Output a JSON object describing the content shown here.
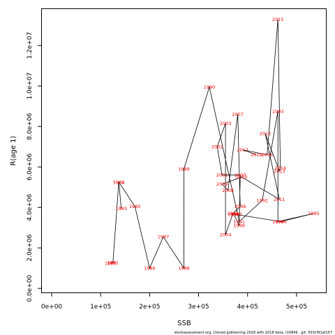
{
  "chart_data": {
    "type": "line",
    "xlabel": "SSB",
    "ylabel": "R(age 1)",
    "footer": "stockassessment.org, Cloned gobherring 2018 with 2018 data, r10846 , git: 503cf91af157",
    "xlim": [
      -20000,
      560000
    ],
    "ylim": [
      -200000,
      13800000
    ],
    "x_ticks": [
      {
        "value": 0,
        "label": "0e+00"
      },
      {
        "value": 100000,
        "label": "1e+05"
      },
      {
        "value": 200000,
        "label": "2e+05"
      },
      {
        "value": 300000,
        "label": "3e+05"
      },
      {
        "value": 400000,
        "label": "4e+05"
      },
      {
        "value": 500000,
        "label": "5e+05"
      }
    ],
    "y_ticks": [
      {
        "value": 0,
        "label": "0.0e+00"
      },
      {
        "value": 2000000,
        "label": "2.0e+06"
      },
      {
        "value": 4000000,
        "label": "4.0e+06"
      },
      {
        "value": 6000000,
        "label": "6.0e+06"
      },
      {
        "value": 8000000,
        "label": "8.0e+06"
      },
      {
        "value": 10000000,
        "label": "1.0e+07"
      },
      {
        "value": 12000000,
        "label": "1.2e+07"
      }
    ],
    "line_color": "#000000",
    "label_color": "#ff0000",
    "points": [
      {
        "year": "1980",
        "x": 120000,
        "y": 1250000
      },
      {
        "year": "1981",
        "x": 125000,
        "y": 1270000
      },
      {
        "year": "1982",
        "x": 137000,
        "y": 5250000
      },
      {
        "year": "1983",
        "x": 142000,
        "y": 3950000
      },
      {
        "year": "1984",
        "x": 137000,
        "y": 5250000
      },
      {
        "year": "1985",
        "x": 170000,
        "y": 4050000
      },
      {
        "year": "1986",
        "x": 200000,
        "y": 1000000
      },
      {
        "year": "1987",
        "x": 228000,
        "y": 2550000
      },
      {
        "year": "1988",
        "x": 270000,
        "y": 1000000
      },
      {
        "year": "1989",
        "x": 270000,
        "y": 5900000
      },
      {
        "year": "1990",
        "x": 322000,
        "y": 9950000
      },
      {
        "year": "1991",
        "x": 383000,
        "y": 3300000
      },
      {
        "year": "1992",
        "x": 430000,
        "y": 4350000
      },
      {
        "year": "1993",
        "x": 462000,
        "y": 8750000
      },
      {
        "year": "1994",
        "x": 462000,
        "y": 3300000
      },
      {
        "year": "1995",
        "x": 535000,
        "y": 3700000
      },
      {
        "year": "1996",
        "x": 468000,
        "y": 3300000
      },
      {
        "year": "1997",
        "x": 377000,
        "y": 3650000
      },
      {
        "year": "1998",
        "x": 372000,
        "y": 3650000
      },
      {
        "year": "1999",
        "x": 383000,
        "y": 3100000
      },
      {
        "year": "2000",
        "x": 385000,
        "y": 5600000
      },
      {
        "year": "2001",
        "x": 348000,
        "y": 5600000
      },
      {
        "year": "2002",
        "x": 338000,
        "y": 7000000
      },
      {
        "year": "2003",
        "x": 355000,
        "y": 8150000
      },
      {
        "year": "2004",
        "x": 355000,
        "y": 2650000
      },
      {
        "year": "2005",
        "x": 370000,
        "y": 3700000
      },
      {
        "year": "2006",
        "x": 385000,
        "y": 4050000
      },
      {
        "year": "2007",
        "x": 380000,
        "y": 8600000
      },
      {
        "year": "2008",
        "x": 360000,
        "y": 4850000
      },
      {
        "year": "2009",
        "x": 348000,
        "y": 5150000
      },
      {
        "year": "2010",
        "x": 388000,
        "y": 5500000
      },
      {
        "year": "2011",
        "x": 465000,
        "y": 4400000
      },
      {
        "year": "2012",
        "x": 436000,
        "y": 7650000
      },
      {
        "year": "2013",
        "x": 465000,
        "y": 5800000
      },
      {
        "year": "2014",
        "x": 467000,
        "y": 5950000
      },
      {
        "year": "2015",
        "x": 462000,
        "y": 13300000
      },
      {
        "year": "2016",
        "x": 440000,
        "y": 6600000
      },
      {
        "year": "2017",
        "x": 390000,
        "y": 6850000
      },
      {
        "year": "2018",
        "x": 418000,
        "y": 6600000
      }
    ]
  }
}
